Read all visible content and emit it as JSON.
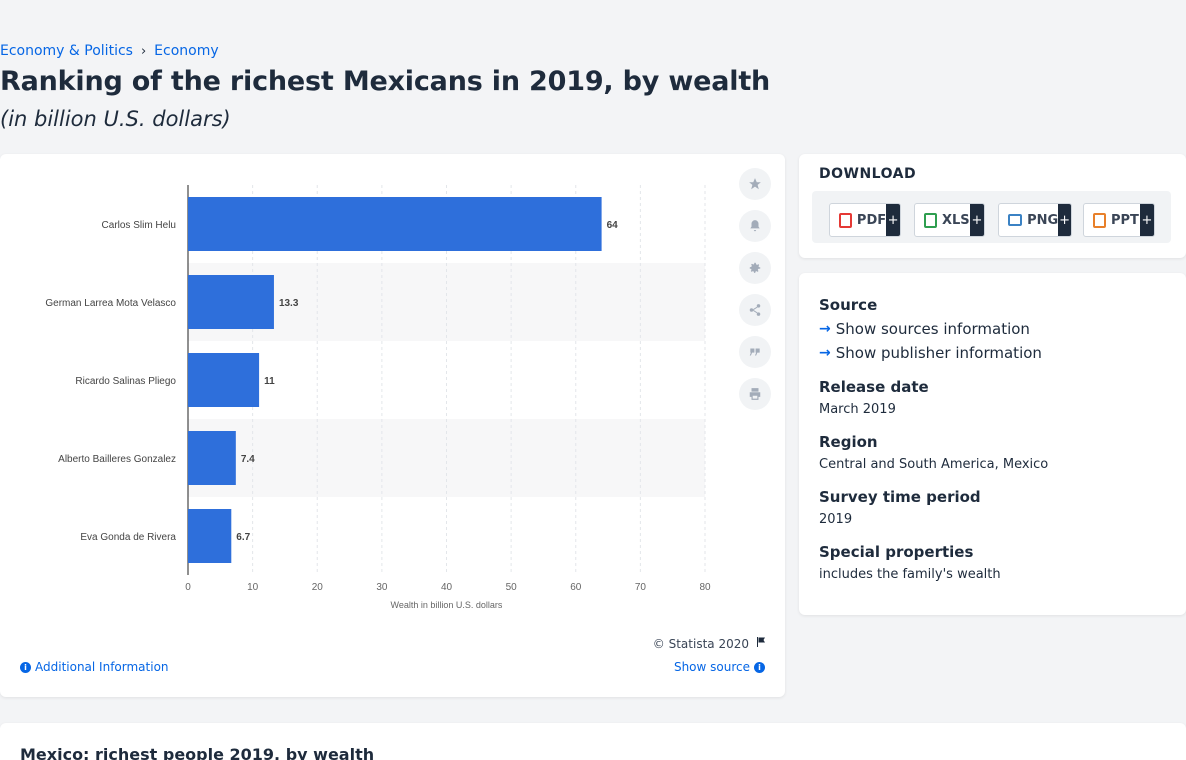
{
  "breadcrumb": {
    "items": [
      "Economy & Politics",
      "Economy"
    ]
  },
  "title": "Ranking of the richest Mexicans in 2019, by wealth",
  "subtitle": "(in billion U.S. dollars)",
  "chart_data": {
    "type": "bar",
    "orientation": "horizontal",
    "categories": [
      "Carlos Slim Helu",
      "German Larrea Mota Velasco",
      "Ricardo Salinas Pliego",
      "Alberto Bailleres Gonzalez",
      "Eva Gonda de Rivera"
    ],
    "values": [
      64,
      13.3,
      11,
      7.4,
      6.7
    ],
    "value_labels": [
      "64",
      "13.3",
      "11",
      "7.4",
      "6.7"
    ],
    "xlabel": "Wealth in billion U.S. dollars",
    "xlim": [
      0,
      80
    ],
    "xticks": [
      "0",
      "10",
      "20",
      "30",
      "40",
      "50",
      "60",
      "70",
      "80"
    ],
    "bar_color": "#2e6fdb",
    "grid": true
  },
  "chart_footer": {
    "copyright": "© Statista 2020",
    "additional_info": "Additional Information",
    "show_source": "Show source"
  },
  "toolbar": {
    "icons": [
      "star-icon",
      "bell-icon",
      "gear-icon",
      "share-icon",
      "quote-icon",
      "print-icon"
    ]
  },
  "download": {
    "title": "DOWNLOAD",
    "buttons": [
      {
        "label": "PDF",
        "color": "#e53935"
      },
      {
        "label": "XLS",
        "color": "#2e9e4f"
      },
      {
        "label": "PNG",
        "color": "#3b82c4"
      },
      {
        "label": "PPT",
        "color": "#e8802a"
      }
    ],
    "plus": "+"
  },
  "info": {
    "source_label": "Source",
    "show_sources": "Show sources information",
    "show_publisher": "Show publisher information",
    "release_label": "Release date",
    "release_value": "March 2019",
    "region_label": "Region",
    "region_value": "Central and South America, Mexico",
    "survey_label": "Survey time period",
    "survey_value": "2019",
    "special_label": "Special properties",
    "special_value": "includes the family's wealth"
  },
  "bottom": {
    "title": "Mexico: richest people 2019, by wealth"
  },
  "colors": {
    "accent": "#0666e5",
    "text": "#1e2b3c"
  }
}
